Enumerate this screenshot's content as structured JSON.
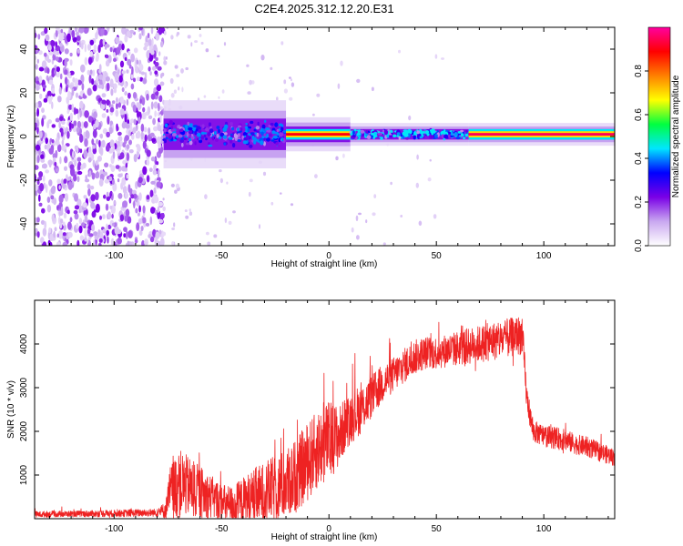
{
  "title": "C2E4.2025.312.12.20.E31",
  "chart_data": [
    {
      "type": "heatmap",
      "name": "spectrogram",
      "xlabel": "Height of straight line (km)",
      "ylabel": "Frequency (Hz)",
      "xlim": [
        -137,
        133
      ],
      "ylim": [
        -50,
        50
      ],
      "xticks": [
        -100,
        -50,
        0,
        50,
        100
      ],
      "yticks": [
        -40,
        -20,
        0,
        20,
        40
      ],
      "colorbar": {
        "label": "Normalized spectral amplitude",
        "range": [
          0.0,
          1.0
        ],
        "ticks": [
          0.0,
          0.2,
          0.4,
          0.6,
          0.8
        ],
        "colors": [
          "#ffffff",
          "#c9a8f0",
          "#7a00e6",
          "#0000ff",
          "#00e6ff",
          "#00ff40",
          "#ffff00",
          "#ff8000",
          "#ff0000",
          "#ff00a0"
        ]
      },
      "noise_region_x": [
        -137,
        -77
      ],
      "signal_band": {
        "center_hz": 1,
        "regions": [
          {
            "x_range": [
              -77,
              -20
            ],
            "halfwidth_hz": 6,
            "peak_amplitude": 0.4
          },
          {
            "x_range": [
              -20,
              10
            ],
            "halfwidth_hz": 3,
            "peak_amplitude": 0.9
          },
          {
            "x_range": [
              10,
              65
            ],
            "halfwidth_hz": 2,
            "peak_amplitude": 0.45
          },
          {
            "x_range": [
              65,
              133
            ],
            "halfwidth_hz": 2,
            "peak_amplitude": 0.95
          }
        ]
      }
    },
    {
      "type": "line",
      "name": "snr",
      "xlabel": "Height of straight line (km)",
      "ylabel": "SNR (10 * v/v)",
      "xlim": [
        -137,
        133
      ],
      "ylim": [
        0,
        5000
      ],
      "xticks": [
        -100,
        -50,
        0,
        50,
        100
      ],
      "yticks": [
        1000,
        2000,
        3000,
        4000
      ],
      "color": "#ee2222",
      "series": [
        {
          "name": "SNR envelope",
          "x": [
            -137,
            -120,
            -100,
            -80,
            -76,
            -74,
            -70,
            -66,
            -60,
            -55,
            -50,
            -45,
            -40,
            -35,
            -30,
            -25,
            -20,
            -15,
            -10,
            -5,
            0,
            5,
            8,
            12,
            15,
            20,
            25,
            30,
            35,
            40,
            45,
            50,
            55,
            60,
            65,
            70,
            75,
            80,
            85,
            88,
            90,
            92,
            95,
            100,
            105,
            110,
            115,
            120,
            125,
            133
          ],
          "base": [
            100,
            110,
            120,
            140,
            200,
            600,
            800,
            750,
            600,
            500,
            350,
            300,
            400,
            500,
            600,
            700,
            800,
            1000,
            1300,
            1600,
            1800,
            1900,
            2200,
            2400,
            2500,
            2800,
            3100,
            3300,
            3500,
            3700,
            3800,
            3800,
            3850,
            3900,
            3950,
            4000,
            4050,
            4100,
            4150,
            4200,
            4200,
            2800,
            2000,
            1900,
            1850,
            1800,
            1700,
            1650,
            1550,
            1400
          ],
          "spread": [
            70,
            70,
            80,
            90,
            200,
            600,
            800,
            700,
            600,
            500,
            450,
            450,
            550,
            650,
            700,
            750,
            800,
            850,
            900,
            900,
            900,
            700,
            600,
            600,
            550,
            500,
            450,
            400,
            400,
            400,
            380,
            380,
            380,
            400,
            420,
            420,
            440,
            450,
            450,
            450,
            450,
            300,
            250,
            250,
            250,
            250,
            230,
            230,
            220,
            200
          ]
        }
      ]
    }
  ]
}
